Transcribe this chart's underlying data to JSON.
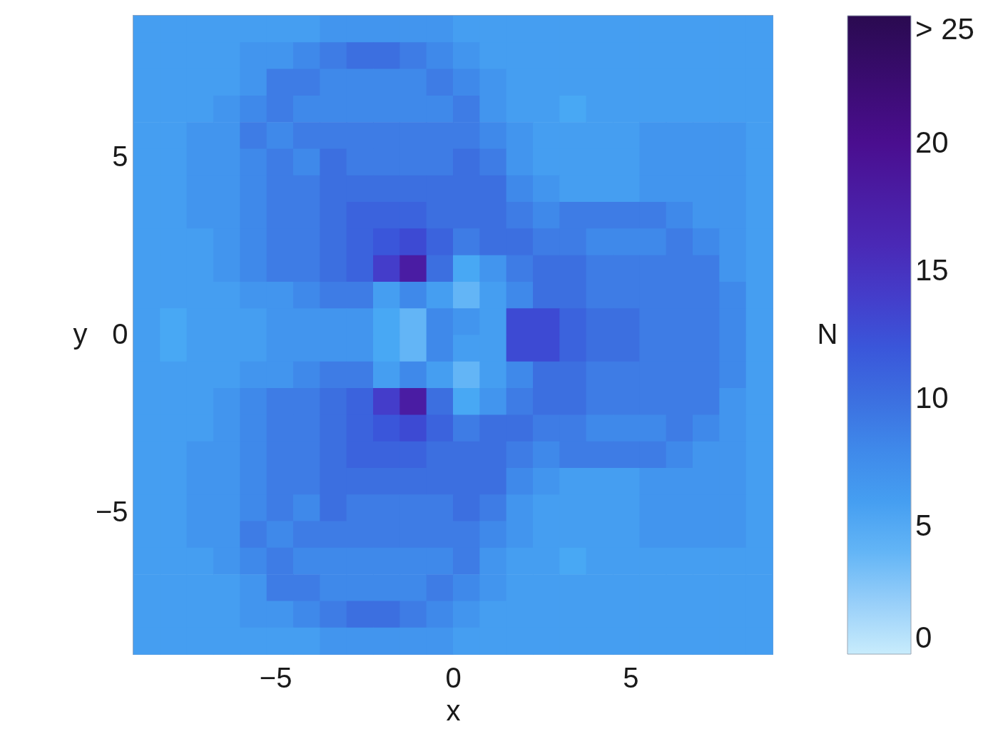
{
  "chart_data": {
    "type": "heatmap",
    "xlabel": "x",
    "ylabel": "y",
    "clabel": "N",
    "xlim": [
      -9,
      9
    ],
    "ylim": [
      -9,
      9
    ],
    "xticks": [
      -5,
      0,
      5
    ],
    "yticks": [
      -5,
      0,
      5
    ],
    "clim": [
      0,
      25
    ],
    "cticks": [
      0,
      5,
      10,
      15,
      20,
      {
        "value": 25,
        "label": "> 25"
      }
    ],
    "x": [
      -8.625,
      -7.875,
      -7.125,
      -6.375,
      -5.625,
      -4.875,
      -4.125,
      -3.375,
      -2.625,
      -1.875,
      -1.125,
      -0.375,
      0.375,
      1.125,
      1.875,
      2.625,
      3.375,
      4.125,
      4.875,
      5.625,
      6.375,
      7.125,
      7.875,
      8.625
    ],
    "y": [
      8.625,
      7.875,
      7.125,
      6.375,
      5.625,
      4.875,
      4.125,
      3.375,
      2.625,
      1.875,
      1.125,
      0.375,
      -0.375,
      -1.125,
      -1.875,
      -2.625,
      -3.375,
      -4.125,
      -4.875,
      -5.625,
      -6.375,
      -7.125,
      -7.875,
      -8.625
    ],
    "cells": [
      [
        6,
        6,
        6,
        6,
        6,
        6,
        6,
        7,
        7,
        7,
        7,
        7,
        6,
        6,
        6,
        6,
        6,
        6,
        6,
        6,
        6,
        6,
        6,
        6
      ],
      [
        6,
        6,
        6,
        6,
        7,
        7,
        8,
        9,
        10,
        10,
        9,
        8,
        7,
        6,
        6,
        6,
        6,
        6,
        6,
        6,
        6,
        6,
        6,
        6
      ],
      [
        6,
        6,
        6,
        6,
        7,
        9,
        9,
        8,
        8,
        8,
        8,
        9,
        8,
        7,
        6,
        6,
        6,
        6,
        6,
        6,
        6,
        6,
        6,
        6
      ],
      [
        6,
        6,
        6,
        7,
        8,
        9,
        8,
        8,
        8,
        8,
        8,
        8,
        9,
        7,
        6,
        6,
        5,
        6,
        6,
        6,
        6,
        6,
        6,
        6
      ],
      [
        6,
        6,
        7,
        7,
        9,
        8,
        9,
        9,
        9,
        9,
        9,
        9,
        9,
        8,
        7,
        6,
        6,
        6,
        6,
        7,
        7,
        7,
        7,
        6
      ],
      [
        6,
        6,
        7,
        7,
        8,
        9,
        8,
        10,
        9,
        9,
        9,
        9,
        10,
        9,
        7,
        6,
        6,
        6,
        6,
        7,
        7,
        7,
        7,
        6
      ],
      [
        6,
        6,
        7,
        7,
        8,
        9,
        9,
        10,
        10,
        10,
        10,
        10,
        10,
        10,
        8,
        7,
        6,
        6,
        6,
        7,
        7,
        7,
        7,
        6
      ],
      [
        6,
        6,
        7,
        7,
        8,
        9,
        9,
        10,
        11,
        11,
        11,
        10,
        10,
        10,
        9,
        8,
        9,
        9,
        9,
        9,
        8,
        7,
        7,
        6
      ],
      [
        6,
        6,
        6,
        7,
        8,
        9,
        9,
        10,
        11,
        12,
        13,
        11,
        9,
        10,
        10,
        9,
        9,
        8,
        8,
        8,
        9,
        8,
        7,
        6
      ],
      [
        6,
        6,
        6,
        7,
        8,
        9,
        9,
        10,
        11,
        14,
        18,
        10,
        5,
        7,
        9,
        10,
        10,
        9,
        9,
        9,
        9,
        9,
        7,
        6
      ],
      [
        6,
        6,
        6,
        6,
        7,
        7,
        8,
        9,
        9,
        6,
        8,
        6,
        4,
        6,
        8,
        10,
        10,
        9,
        9,
        9,
        9,
        9,
        8,
        6
      ],
      [
        6,
        5,
        6,
        6,
        6,
        7,
        7,
        7,
        7,
        5,
        4,
        8,
        7,
        6,
        13,
        13,
        11,
        10,
        10,
        9,
        9,
        9,
        8,
        6
      ],
      [
        6,
        5,
        6,
        6,
        6,
        7,
        7,
        7,
        7,
        5,
        4,
        8,
        6,
        6,
        13,
        13,
        11,
        10,
        10,
        9,
        9,
        9,
        8,
        6
      ],
      [
        6,
        6,
        6,
        6,
        7,
        7,
        8,
        9,
        9,
        6,
        8,
        6,
        4,
        6,
        8,
        10,
        10,
        9,
        9,
        9,
        9,
        9,
        8,
        6
      ],
      [
        6,
        6,
        6,
        7,
        8,
        9,
        9,
        10,
        11,
        14,
        18,
        10,
        5,
        7,
        9,
        10,
        10,
        9,
        9,
        9,
        9,
        9,
        7,
        6
      ],
      [
        6,
        6,
        6,
        7,
        8,
        9,
        9,
        10,
        11,
        12,
        13,
        11,
        9,
        10,
        10,
        9,
        9,
        8,
        8,
        8,
        9,
        8,
        7,
        6
      ],
      [
        6,
        6,
        7,
        7,
        8,
        9,
        9,
        10,
        11,
        11,
        11,
        10,
        10,
        10,
        9,
        8,
        9,
        9,
        9,
        9,
        8,
        7,
        7,
        6
      ],
      [
        6,
        6,
        7,
        7,
        8,
        9,
        9,
        10,
        10,
        10,
        10,
        10,
        10,
        10,
        8,
        7,
        6,
        6,
        6,
        7,
        7,
        7,
        7,
        6
      ],
      [
        6,
        6,
        7,
        7,
        8,
        9,
        8,
        10,
        9,
        9,
        9,
        9,
        10,
        9,
        7,
        6,
        6,
        6,
        6,
        7,
        7,
        7,
        7,
        6
      ],
      [
        6,
        6,
        7,
        7,
        9,
        8,
        9,
        9,
        9,
        9,
        9,
        9,
        9,
        8,
        7,
        6,
        6,
        6,
        6,
        7,
        7,
        7,
        7,
        6
      ],
      [
        6,
        6,
        6,
        7,
        8,
        9,
        8,
        8,
        8,
        8,
        8,
        8,
        9,
        7,
        6,
        6,
        5,
        6,
        6,
        6,
        6,
        6,
        6,
        6
      ],
      [
        6,
        6,
        6,
        6,
        7,
        9,
        9,
        8,
        8,
        8,
        8,
        9,
        8,
        7,
        6,
        6,
        6,
        6,
        6,
        6,
        6,
        6,
        6,
        6
      ],
      [
        6,
        6,
        6,
        6,
        7,
        7,
        8,
        9,
        10,
        10,
        9,
        8,
        7,
        6,
        6,
        6,
        6,
        6,
        6,
        6,
        6,
        6,
        6,
        6
      ],
      [
        6,
        6,
        6,
        6,
        6,
        6,
        6,
        7,
        7,
        7,
        7,
        7,
        6,
        6,
        6,
        6,
        6,
        6,
        6,
        6,
        6,
        6,
        6,
        6
      ]
    ]
  }
}
